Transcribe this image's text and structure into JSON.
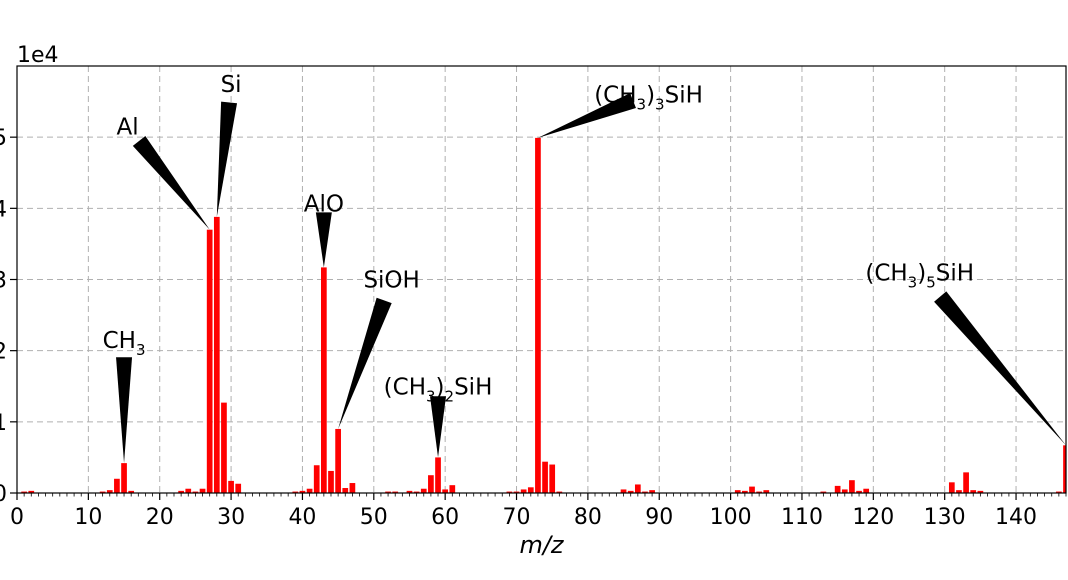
{
  "chart_data": {
    "type": "bar",
    "xlabel": "m/z",
    "ylabel": "",
    "offset_text": "1e4",
    "xlim": [
      0,
      147
    ],
    "ylim": [
      0,
      6
    ],
    "xticks": [
      0,
      10,
      20,
      30,
      40,
      50,
      60,
      70,
      80,
      90,
      100,
      110,
      120,
      130,
      140
    ],
    "yticks": [
      0,
      1,
      2,
      3,
      4,
      5
    ],
    "grid": true,
    "bar_color": "#ff0000",
    "bars": [
      {
        "x": 1,
        "y": 0.02
      },
      {
        "x": 2,
        "y": 0.03
      },
      {
        "x": 12,
        "y": 0.02
      },
      {
        "x": 13,
        "y": 0.04
      },
      {
        "x": 14,
        "y": 0.2
      },
      {
        "x": 15,
        "y": 0.42
      },
      {
        "x": 16,
        "y": 0.03
      },
      {
        "x": 23,
        "y": 0.03
      },
      {
        "x": 24,
        "y": 0.06
      },
      {
        "x": 25,
        "y": 0.02
      },
      {
        "x": 26,
        "y": 0.06
      },
      {
        "x": 27,
        "y": 3.7
      },
      {
        "x": 28,
        "y": 3.88
      },
      {
        "x": 29,
        "y": 1.27
      },
      {
        "x": 30,
        "y": 0.17
      },
      {
        "x": 31,
        "y": 0.13
      },
      {
        "x": 39,
        "y": 0.02
      },
      {
        "x": 40,
        "y": 0.03
      },
      {
        "x": 41,
        "y": 0.06
      },
      {
        "x": 42,
        "y": 0.39
      },
      {
        "x": 43,
        "y": 3.17
      },
      {
        "x": 44,
        "y": 0.31
      },
      {
        "x": 45,
        "y": 0.9
      },
      {
        "x": 46,
        "y": 0.07
      },
      {
        "x": 47,
        "y": 0.14
      },
      {
        "x": 52,
        "y": 0.02
      },
      {
        "x": 53,
        "y": 0.02
      },
      {
        "x": 55,
        "y": 0.03
      },
      {
        "x": 56,
        "y": 0.02
      },
      {
        "x": 57,
        "y": 0.06
      },
      {
        "x": 58,
        "y": 0.25
      },
      {
        "x": 59,
        "y": 0.5
      },
      {
        "x": 60,
        "y": 0.05
      },
      {
        "x": 61,
        "y": 0.11
      },
      {
        "x": 69,
        "y": 0.02
      },
      {
        "x": 70,
        "y": 0.02
      },
      {
        "x": 71,
        "y": 0.05
      },
      {
        "x": 72,
        "y": 0.08
      },
      {
        "x": 73,
        "y": 4.99
      },
      {
        "x": 74,
        "y": 0.44
      },
      {
        "x": 75,
        "y": 0.4
      },
      {
        "x": 76,
        "y": 0.02
      },
      {
        "x": 85,
        "y": 0.05
      },
      {
        "x": 86,
        "y": 0.03
      },
      {
        "x": 87,
        "y": 0.12
      },
      {
        "x": 88,
        "y": 0.02
      },
      {
        "x": 89,
        "y": 0.04
      },
      {
        "x": 101,
        "y": 0.04
      },
      {
        "x": 102,
        "y": 0.03
      },
      {
        "x": 103,
        "y": 0.09
      },
      {
        "x": 104,
        "y": 0.02
      },
      {
        "x": 105,
        "y": 0.04
      },
      {
        "x": 113,
        "y": 0.02
      },
      {
        "x": 115,
        "y": 0.1
      },
      {
        "x": 116,
        "y": 0.05
      },
      {
        "x": 117,
        "y": 0.18
      },
      {
        "x": 118,
        "y": 0.03
      },
      {
        "x": 119,
        "y": 0.06
      },
      {
        "x": 131,
        "y": 0.15
      },
      {
        "x": 132,
        "y": 0.04
      },
      {
        "x": 133,
        "y": 0.29
      },
      {
        "x": 134,
        "y": 0.04
      },
      {
        "x": 135,
        "y": 0.03
      },
      {
        "x": 146,
        "y": 0.02
      },
      {
        "x": 147,
        "y": 0.67
      }
    ],
    "annotations": [
      {
        "base": "CH",
        "sub": "3",
        "tail": "",
        "x": 15,
        "y": 0.42,
        "text_x": 15,
        "text_y": 2.15
      },
      {
        "base": "Al",
        "sub": "",
        "tail": "",
        "x": 27,
        "y": 3.7,
        "text_x": 15.5,
        "text_y": 5.15
      },
      {
        "base": "Si",
        "sub": "",
        "tail": "",
        "x": 28,
        "y": 3.88,
        "text_x": 30,
        "text_y": 5.75
      },
      {
        "base": "AlO",
        "sub": "",
        "tail": "",
        "x": 43,
        "y": 3.17,
        "text_x": 43,
        "text_y": 4.07
      },
      {
        "base": "SiOH",
        "sub": "",
        "tail": "",
        "x": 45,
        "y": 0.9,
        "text_x": 52.5,
        "text_y": 3.0
      },
      {
        "base": "(CH",
        "sub": "3",
        "tail": ")2SiH",
        "x": 59,
        "y": 0.5,
        "text_x": 59,
        "text_y": 1.5
      },
      {
        "base": "(CH",
        "sub": "3",
        "tail": ")3SiH",
        "x": 73,
        "y": 4.99,
        "text_x": 88.5,
        "text_y": 5.6
      },
      {
        "base": "(CH",
        "sub": "3",
        "tail": ")5SiH",
        "x": 147,
        "y": 0.67,
        "text_x": 126.5,
        "text_y": 3.1
      }
    ]
  }
}
